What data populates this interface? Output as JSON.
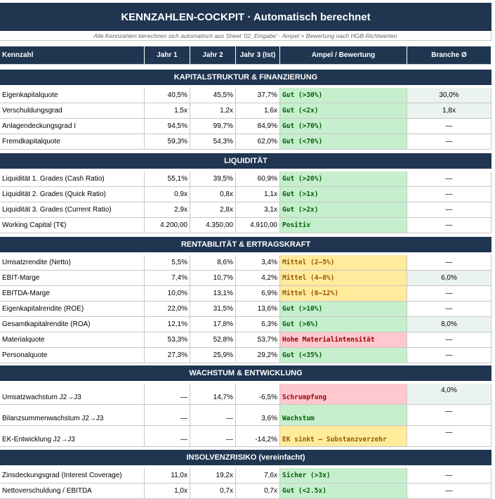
{
  "title": "KENNZAHLEN-COCKPIT · Automatisch berechnet",
  "subtitle": "Alle Kennzahlen berechnen sich automatisch aus Sheet '02_Eingabe' · Ampel = Bewertung nach HGB-Richtwerten",
  "header": {
    "name": "Kennzahl",
    "y1": "Jahr 1",
    "y2": "Jahr 2",
    "y3": "Jahr 3 (Ist)",
    "ampel": "Ampel / Bewertung",
    "branche": "Branche Ø"
  },
  "sections": [
    {
      "title": "KAPITALSTRUKTUR & FINANZIERUNG",
      "rows": [
        {
          "name": "Eigenkapitalquote",
          "y1": "40,5%",
          "y2": "45,5%",
          "y3": "37,7%",
          "ampel": "Gut (>30%)",
          "status": "gut",
          "branche": "30,0%"
        },
        {
          "name": "Verschuldungsgrad",
          "y1": "1,5x",
          "y2": "1,2x",
          "y3": "1,6x",
          "ampel": "Gut (<2x)",
          "status": "gut",
          "branche": "1,8x"
        },
        {
          "name": "Anlagendeckungsgrad I",
          "y1": "94,5%",
          "y2": "99,7%",
          "y3": "84,9%",
          "ampel": "Gut (>70%)",
          "status": "gut",
          "branche": "—"
        },
        {
          "name": "Fremdkapitalquote",
          "y1": "59,3%",
          "y2": "54,3%",
          "y3": "62,0%",
          "ampel": "Gut (<70%)",
          "status": "gut",
          "branche": "—"
        }
      ]
    },
    {
      "title": "LIQUIDITÄT",
      "rows": [
        {
          "name": "Liquidität 1. Grades (Cash Ratio)",
          "y1": "55,1%",
          "y2": "39,5%",
          "y3": "60,9%",
          "ampel": "Gut (>20%)",
          "status": "gut",
          "branche": "—"
        },
        {
          "name": "Liquidität 2. Grades (Quick Ratio)",
          "y1": "0,9x",
          "y2": "0,8x",
          "y3": "1,1x",
          "ampel": "Gut (>1x)",
          "status": "gut",
          "branche": "—"
        },
        {
          "name": "Liquidität 3. Grades (Current Ratio)",
          "y1": "2,9x",
          "y2": "2,8x",
          "y3": "3,1x",
          "ampel": "Gut (>2x)",
          "status": "gut",
          "branche": "—"
        },
        {
          "name": "Working Capital (T€)",
          "y1": "4.200,00",
          "y2": "4.350,00",
          "y3": "4.910,00",
          "ampel": "Positiv",
          "status": "gut",
          "branche": "—"
        }
      ]
    },
    {
      "title": "RENTABILITÄT & ERTRAGSKRAFT",
      "rows": [
        {
          "name": "Umsatzrendite (Netto)",
          "y1": "5,5%",
          "y2": "8,6%",
          "y3": "3,4%",
          "ampel": "Mittel (2–5%)",
          "status": "mit",
          "branche": "—"
        },
        {
          "name": "EBIT-Marge",
          "y1": "7,4%",
          "y2": "10,7%",
          "y3": "4,2%",
          "ampel": "Mittel (4–8%)",
          "status": "mit",
          "branche": "6,0%"
        },
        {
          "name": "EBITDA-Marge",
          "y1": "10,0%",
          "y2": "13,1%",
          "y3": "6,9%",
          "ampel": "Mittel (6–12%)",
          "status": "mit",
          "branche": "—"
        },
        {
          "name": "Eigenkapitalrendite (ROE)",
          "y1": "22,0%",
          "y2": "31,5%",
          "y3": "13,6%",
          "ampel": "Gut (>10%)",
          "status": "gut",
          "branche": "—"
        },
        {
          "name": "Gesamtkapitalrendite (ROA)",
          "y1": "12,1%",
          "y2": "17,8%",
          "y3": "6,3%",
          "ampel": "Gut (>6%)",
          "status": "gut",
          "branche": "8,0%"
        },
        {
          "name": "Materialquote",
          "y1": "53,3%",
          "y2": "52,8%",
          "y3": "53,7%",
          "ampel": "Hohe Materialintensität",
          "status": "sch",
          "branche": "—"
        },
        {
          "name": "Personalquote",
          "y1": "27,3%",
          "y2": "25,9%",
          "y3": "29,2%",
          "ampel": "Gut (<35%)",
          "status": "gut",
          "branche": "—"
        }
      ]
    },
    {
      "title": "WACHSTUM & ENTWICKLUNG",
      "rows": [
        {
          "name": "Umsatzwachstum J2→J3",
          "y1": "—",
          "y2": "14,7%",
          "y3": "-6,5%",
          "ampel": "Schrumpfung",
          "status": "sch",
          "branche": "4,0%"
        },
        {
          "name": "Bilanzsummenwachstum J2→J3",
          "y1": "—",
          "y2": "—",
          "y3": "3,6%",
          "ampel": "Wachstum",
          "status": "gut",
          "branche": "—"
        },
        {
          "name": "EK-Entwicklung J2→J3",
          "y1": "—",
          "y2": "—",
          "y3": "-14,2%",
          "ampel": "EK sinkt – Substanzverzehr",
          "status": "mit",
          "branche": "—"
        }
      ]
    },
    {
      "title": "INSOLVENZRISIKO (vereinfacht)",
      "rows": [
        {
          "name": "Zinsdeckungsgrad (Interest Coverage)",
          "y1": "11,0x",
          "y2": "19,2x",
          "y3": "7,6x",
          "ampel": "Sicher (>3x)",
          "status": "gut",
          "branche": "—"
        },
        {
          "name": "Nettoverschuldung / EBITDA",
          "y1": "1,0x",
          "y2": "0,7x",
          "y3": "0,7x",
          "ampel": "Gut (<2.5x)",
          "status": "gut",
          "branche": "—"
        }
      ]
    }
  ],
  "colors": {
    "header_bg": "#1f3550",
    "good_bg": "#c6efce",
    "medium_bg": "#ffeb9c",
    "bad_bg": "#ffc7ce"
  }
}
